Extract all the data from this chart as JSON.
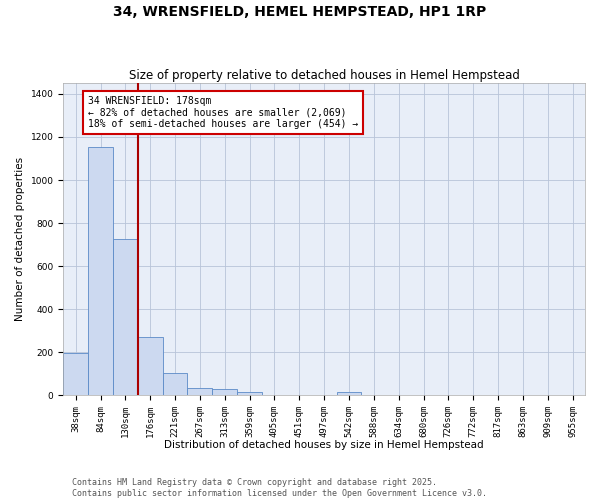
{
  "title": "34, WRENSFIELD, HEMEL HEMPSTEAD, HP1 1RP",
  "subtitle": "Size of property relative to detached houses in Hemel Hempstead",
  "xlabel": "Distribution of detached houses by size in Hemel Hempstead",
  "ylabel": "Number of detached properties",
  "categories": [
    "38sqm",
    "84sqm",
    "130sqm",
    "176sqm",
    "221sqm",
    "267sqm",
    "313sqm",
    "359sqm",
    "405sqm",
    "451sqm",
    "497sqm",
    "542sqm",
    "588sqm",
    "634sqm",
    "680sqm",
    "726sqm",
    "772sqm",
    "817sqm",
    "863sqm",
    "909sqm",
    "955sqm"
  ],
  "values": [
    196,
    1155,
    725,
    270,
    105,
    35,
    27,
    14,
    0,
    0,
    0,
    15,
    0,
    0,
    0,
    0,
    0,
    0,
    0,
    0,
    0
  ],
  "bar_color": "#ccd9f0",
  "bar_edge_color": "#5b8ac7",
  "background_color": "#e8eef8",
  "grid_color": "#b8c4d8",
  "vline_x_idx": 3,
  "vline_color": "#aa0000",
  "annotation_text": "34 WRENSFIELD: 178sqm\n← 82% of detached houses are smaller (2,069)\n18% of semi-detached houses are larger (454) →",
  "annotation_box_color": "#cc0000",
  "ylim": [
    0,
    1450
  ],
  "yticks": [
    0,
    200,
    400,
    600,
    800,
    1000,
    1200,
    1400
  ],
  "footer_line1": "Contains HM Land Registry data © Crown copyright and database right 2025.",
  "footer_line2": "Contains public sector information licensed under the Open Government Licence v3.0.",
  "title_fontsize": 10,
  "subtitle_fontsize": 8.5,
  "axis_label_fontsize": 7.5,
  "tick_fontsize": 6.5,
  "annotation_fontsize": 7,
  "footer_fontsize": 6
}
